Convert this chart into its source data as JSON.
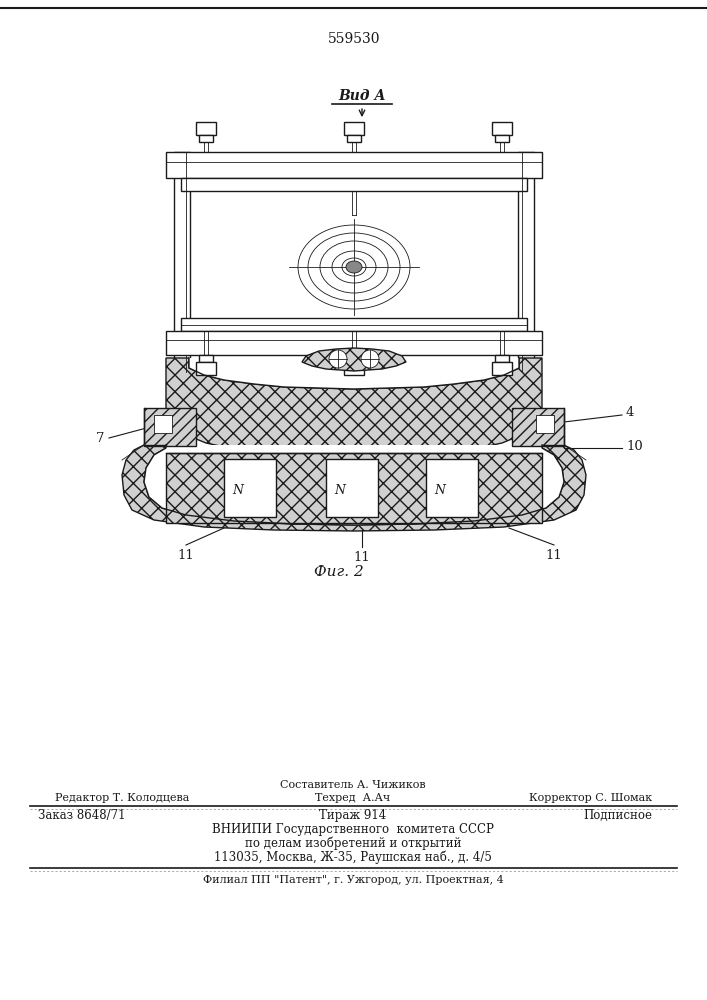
{
  "patent_number": "559530",
  "view_label": "Вид А",
  "fig_label": "Фиг. 2",
  "bg_color": "#ffffff",
  "line_color": "#1a1a1a",
  "footer_above_center": "Составитель А. Чижиков",
  "footer_line1_left": "Редактор Т. Колодцева",
  "footer_line1_center": "Техред  А.Ач",
  "footer_line1_right": "Корректор С. Шомак",
  "footer_line2_left": "Заказ 8648/71",
  "footer_line2_center": "Тираж 914",
  "footer_line2_right": "Подписное",
  "footer_line3": "ВНИИПИ Государственного  комитета СССР",
  "footer_line4": "по делам изобретений и открытий",
  "footer_line5": "113035, Москва, Ж-35, Раушская наб., д. 4/5",
  "footer_line6": "Филиал ПП \"Патент\", г. Ужгород, ул. Проектная, 4"
}
